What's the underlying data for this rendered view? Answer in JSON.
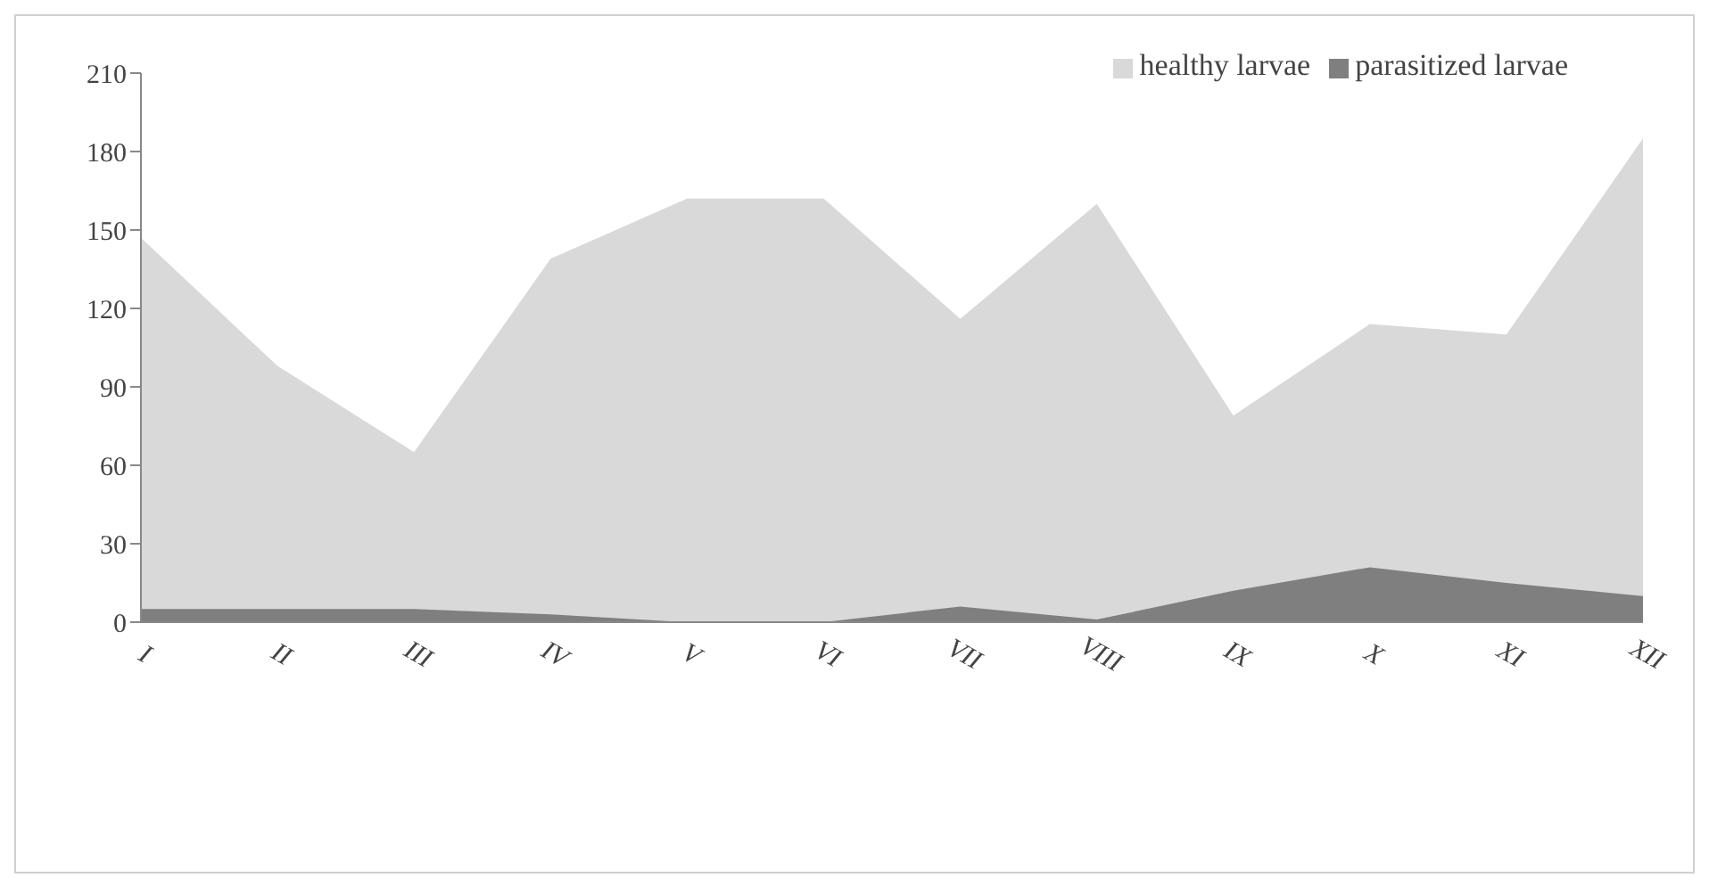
{
  "chart_data": {
    "type": "area",
    "categories": [
      "I",
      "II",
      "III",
      "IV",
      "V",
      "VI",
      "VII",
      "VIII",
      "IX",
      "X",
      "XI",
      "XII"
    ],
    "series": [
      {
        "name": "healthy larvae",
        "color": "#d9d9d9",
        "values": [
          147,
          98,
          65,
          139,
          162,
          162,
          116,
          160,
          79,
          114,
          110,
          185
        ]
      },
      {
        "name": "parasitized larvae",
        "color": "#7f7f7f",
        "values": [
          5,
          5,
          5,
          3,
          0,
          0,
          6,
          1,
          12,
          21,
          15,
          10
        ]
      }
    ],
    "ylim": [
      0,
      210
    ],
    "yticks": [
      0,
      30,
      60,
      90,
      120,
      150,
      180,
      210
    ],
    "grid": false,
    "legend": "top right"
  }
}
